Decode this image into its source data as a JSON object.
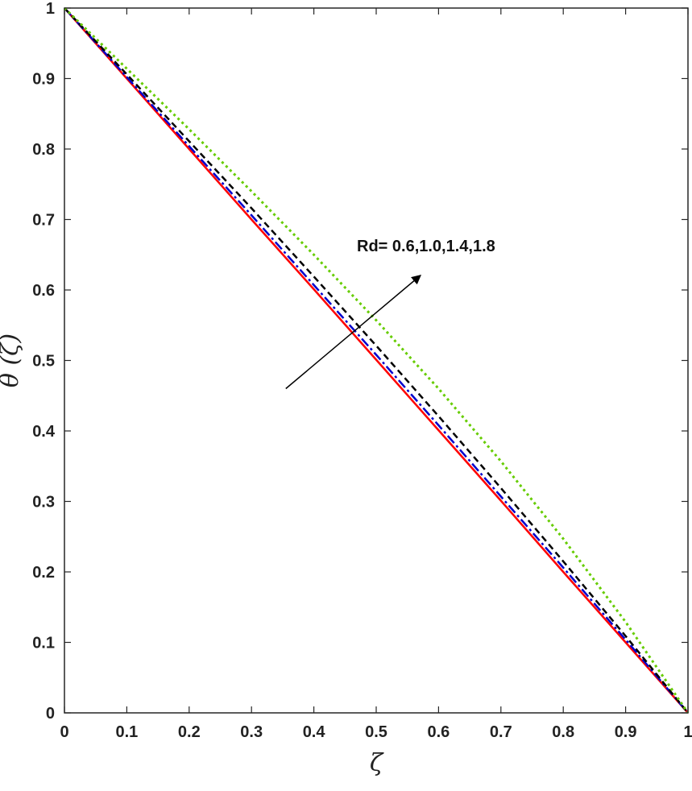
{
  "chart_data": {
    "type": "line",
    "xlabel": "ζ",
    "ylabel": "θ (ζ)",
    "xlim": [
      0,
      1
    ],
    "ylim": [
      0,
      1
    ],
    "xticks": [
      0,
      0.1,
      0.2,
      0.3,
      0.4,
      0.5,
      0.6,
      0.7,
      0.8,
      0.9,
      1
    ],
    "yticks": [
      0,
      0.1,
      0.2,
      0.3,
      0.4,
      0.5,
      0.6,
      0.7,
      0.8,
      0.9,
      1
    ],
    "xtick_labels": [
      "0",
      "0.1",
      "0.2",
      "0.3",
      "0.4",
      "0.5",
      "0.6",
      "0.7",
      "0.8",
      "0.9",
      "1"
    ],
    "ytick_labels": [
      "0",
      "0.1",
      "0.2",
      "0.3",
      "0.4",
      "0.5",
      "0.6",
      "0.7",
      "0.8",
      "0.9",
      "1"
    ],
    "grid": false,
    "annotation": {
      "text": "Rd= 0.6,1.0,1.4,1.8",
      "arrow_from": [
        0.355,
        0.46
      ],
      "arrow_to": [
        0.57,
        0.62
      ]
    },
    "series": [
      {
        "color": "#ff0000",
        "style": "solid",
        "x": [
          0,
          0.1,
          0.2,
          0.3,
          0.4,
          0.5,
          0.6,
          0.7,
          0.8,
          0.9,
          1
        ],
        "y": [
          1,
          0.9,
          0.8,
          0.7,
          0.601,
          0.501,
          0.401,
          0.301,
          0.2,
          0.1,
          0
        ]
      },
      {
        "color": "#0000cc",
        "style": "dashdot",
        "x": [
          0,
          0.1,
          0.2,
          0.3,
          0.4,
          0.5,
          0.6,
          0.7,
          0.8,
          0.9,
          1
        ],
        "y": [
          1,
          0.902,
          0.804,
          0.706,
          0.607,
          0.508,
          0.408,
          0.307,
          0.206,
          0.104,
          0
        ]
      },
      {
        "color": "#000000",
        "style": "dashed",
        "x": [
          0,
          0.1,
          0.2,
          0.3,
          0.4,
          0.5,
          0.6,
          0.7,
          0.8,
          0.9,
          1
        ],
        "y": [
          1,
          0.906,
          0.811,
          0.716,
          0.619,
          0.521,
          0.421,
          0.319,
          0.215,
          0.109,
          0
        ]
      },
      {
        "color": "#66cc00",
        "style": "dotted",
        "x": [
          0,
          0.1,
          0.2,
          0.3,
          0.4,
          0.5,
          0.6,
          0.7,
          0.8,
          0.9,
          1
        ],
        "y": [
          1,
          0.914,
          0.828,
          0.74,
          0.65,
          0.557,
          0.46,
          0.357,
          0.247,
          0.129,
          0
        ]
      }
    ]
  }
}
